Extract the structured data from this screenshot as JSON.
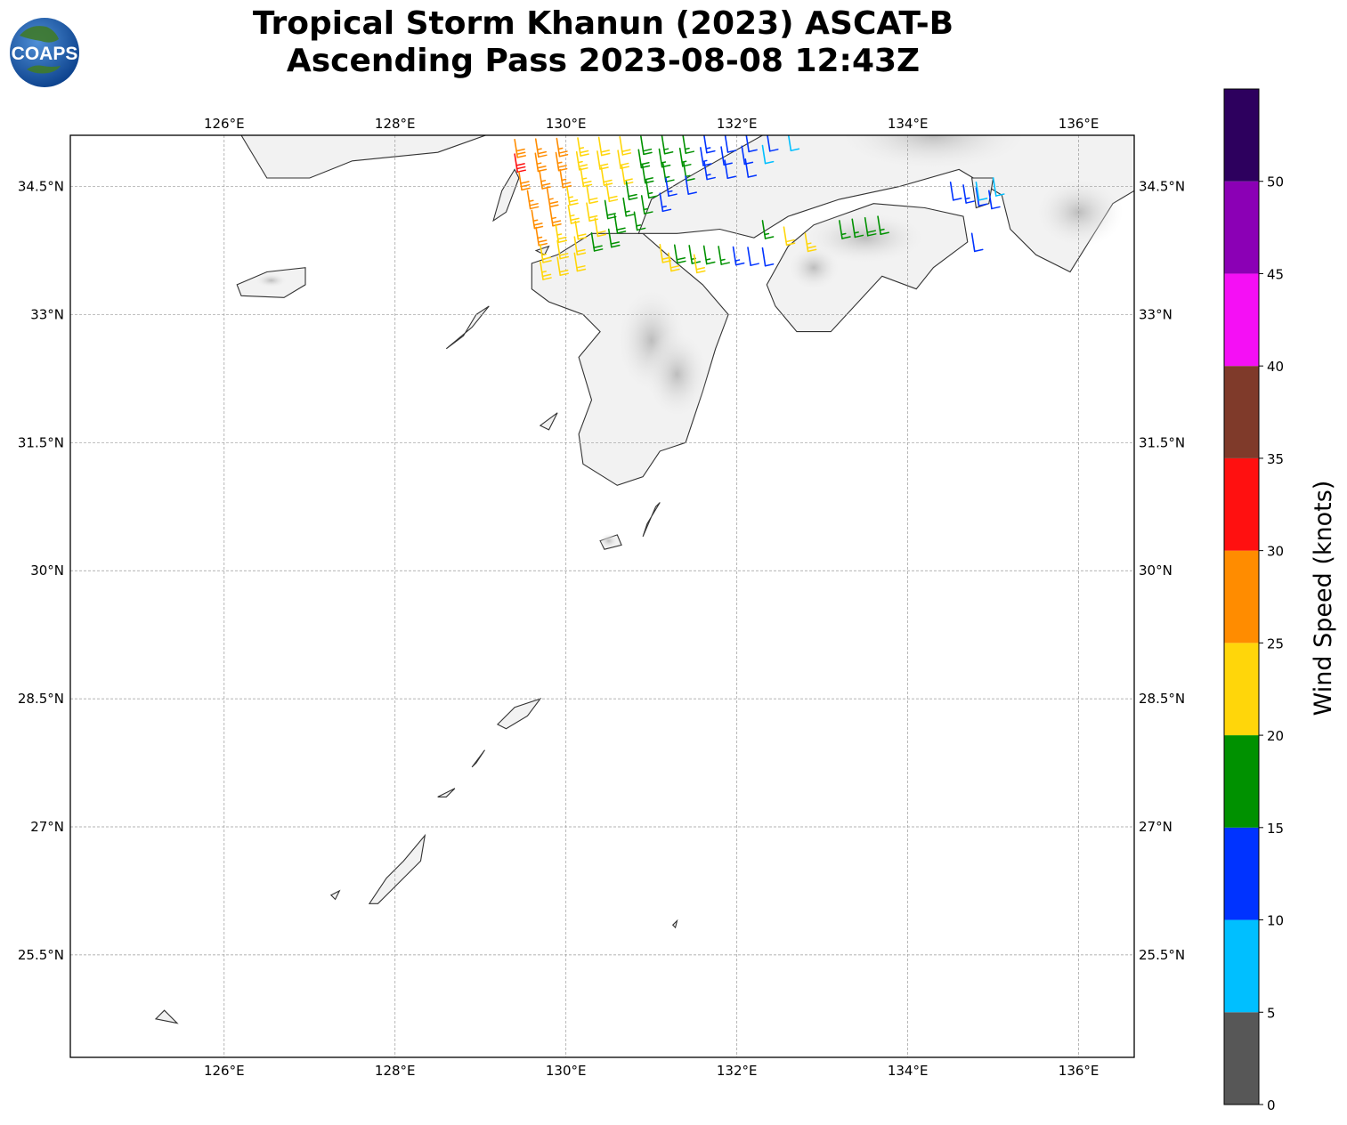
{
  "header": {
    "title_line1": "Tropical Storm Khanun (2023) ASCAT-B",
    "title_line2": "Ascending Pass 2023-08-08 12:43Z"
  },
  "logo": {
    "text": "COAPS",
    "icon": "globe-logo-icon"
  },
  "map": {
    "lon_range": [
      124.2,
      136.65
    ],
    "lat_range": [
      24.3,
      35.1
    ],
    "x_ticks": [
      "126°E",
      "128°E",
      "130°E",
      "132°E",
      "134°E",
      "136°E"
    ],
    "y_ticks": [
      "34.5°N",
      "33°N",
      "31.5°N",
      "30°N",
      "28.5°N",
      "27°N",
      "25.5°N"
    ],
    "grid": true,
    "land_color": "#f2f2f2",
    "coast_color": "#333333"
  },
  "colorbar": {
    "label": "Wind Speed (knots)",
    "ticks": [
      "0",
      "5",
      "10",
      "15",
      "20",
      "25",
      "30",
      "35",
      "40",
      "45",
      "50"
    ],
    "bins": [
      {
        "min": 0,
        "max": 5,
        "color": "#575757"
      },
      {
        "min": 5,
        "max": 10,
        "color": "#00bfff"
      },
      {
        "min": 10,
        "max": 15,
        "color": "#0033ff"
      },
      {
        "min": 15,
        "max": 20,
        "color": "#009100"
      },
      {
        "min": 20,
        "max": 25,
        "color": "#ffd60a"
      },
      {
        "min": 25,
        "max": 30,
        "color": "#ff8c00"
      },
      {
        "min": 30,
        "max": 35,
        "color": "#ff1010"
      },
      {
        "min": 35,
        "max": 40,
        "color": "#7f3a2a"
      },
      {
        "min": 40,
        "max": 45,
        "color": "#f50ff5"
      },
      {
        "min": 45,
        "max": 50,
        "color": "#8b00b5"
      },
      {
        "min": 50,
        "max": 55,
        "color": "#2d005e"
      }
    ]
  },
  "wind_rows": [
    {
      "lon0": 129.4,
      "lat0": 35.05,
      "lon1": 132.6,
      "lat1": 35.13,
      "speeds": [
        28,
        27,
        26,
        24,
        22,
        20,
        18,
        16,
        15,
        13,
        12,
        11,
        10,
        9
      ]
    },
    {
      "lon0": 129.4,
      "lat0": 34.88,
      "lon1": 132.3,
      "lat1": 34.98,
      "speeds": [
        32,
        27,
        26,
        24,
        22,
        21,
        19,
        17,
        16,
        14,
        12,
        12,
        8
      ]
    },
    {
      "lon0": 129.45,
      "lat0": 34.67,
      "lon1": 132.1,
      "lat1": 34.82,
      "speeds": [
        28,
        27,
        25,
        23,
        22,
        20,
        18,
        17,
        15,
        13,
        12,
        11
      ]
    },
    {
      "lon0": 129.55,
      "lat0": 34.45,
      "lon1": 131.4,
      "lat1": 34.62,
      "speeds": [
        27,
        26,
        24,
        22,
        20,
        18,
        16,
        14,
        12
      ]
    },
    {
      "lon0": 129.6,
      "lat0": 34.22,
      "lon1": 131.1,
      "lat1": 34.42,
      "speeds": [
        27,
        26,
        23,
        21,
        19,
        17,
        15,
        13
      ]
    },
    {
      "lon0": 129.65,
      "lat0": 34.02,
      "lon1": 130.8,
      "lat1": 34.2,
      "speeds": [
        27,
        24,
        22,
        20,
        18,
        17
      ]
    },
    {
      "lon0": 129.7,
      "lat0": 33.82,
      "lon1": 130.5,
      "lat1": 34.0,
      "speeds": [
        23,
        22,
        21,
        19,
        18
      ]
    },
    {
      "lon0": 129.7,
      "lat0": 33.62,
      "lon1": 130.1,
      "lat1": 33.72,
      "speeds": [
        23,
        22,
        21
      ]
    },
    {
      "lon0": 131.1,
      "lat0": 33.82,
      "lon1": 132.3,
      "lat1": 33.78,
      "speeds": [
        22,
        18,
        17,
        17,
        16,
        13,
        12,
        12
      ]
    },
    {
      "lon0": 131.2,
      "lat0": 33.72,
      "lon1": 131.5,
      "lat1": 33.7,
      "speeds": [
        22,
        21
      ]
    },
    {
      "lon0": 132.3,
      "lat0": 34.1,
      "lon1": 132.8,
      "lat1": 33.95,
      "speeds": [
        16,
        22,
        23
      ]
    },
    {
      "lon0": 133.2,
      "lat0": 34.1,
      "lon1": 133.65,
      "lat1": 34.15,
      "speeds": [
        16,
        17,
        18,
        17
      ]
    },
    {
      "lon0": 134.5,
      "lat0": 34.55,
      "lon1": 134.95,
      "lat1": 34.45,
      "speeds": [
        12,
        13,
        12,
        11
      ]
    },
    {
      "lon0": 134.8,
      "lat0": 34.55,
      "lon1": 135.0,
      "lat1": 34.6,
      "speeds": [
        8,
        8
      ]
    },
    {
      "lon0": 134.75,
      "lat0": 33.95,
      "lon1": 134.75,
      "lat1": 33.95,
      "speeds": [
        12
      ]
    }
  ]
}
